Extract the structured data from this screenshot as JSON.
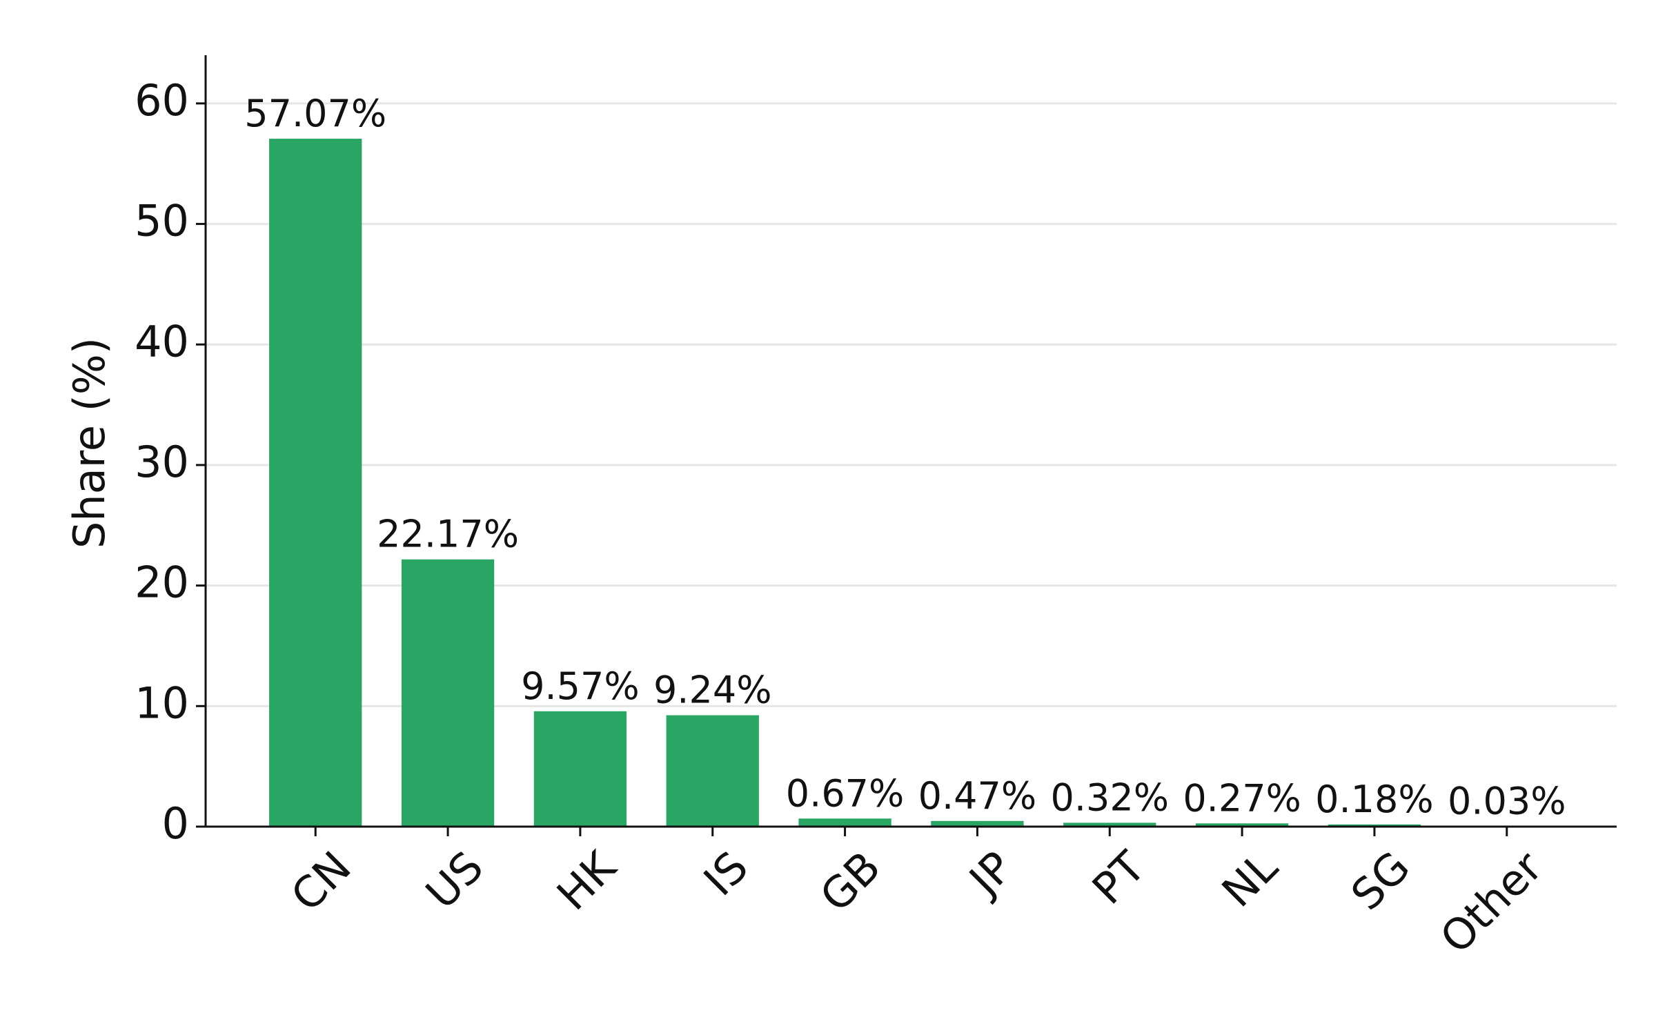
{
  "chart_data": {
    "type": "bar",
    "y_label": "Share (%)",
    "categories": [
      "CN",
      "US",
      "HK",
      "IS",
      "GB",
      "JP",
      "PT",
      "NL",
      "SG",
      "Other"
    ],
    "values": [
      57.07,
      22.17,
      9.57,
      9.24,
      0.67,
      0.47,
      0.32,
      0.27,
      0.18,
      0.03
    ],
    "value_labels": [
      "57.07%",
      "22.17%",
      "9.57%",
      "9.24%",
      "0.67%",
      "0.47%",
      "0.32%",
      "0.27%",
      "0.18%",
      "0.03%"
    ],
    "color": "#29a663",
    "ylim": [
      0,
      64
    ],
    "yticks": [
      0,
      10,
      20,
      30,
      40,
      50,
      60
    ],
    "grid": true
  }
}
